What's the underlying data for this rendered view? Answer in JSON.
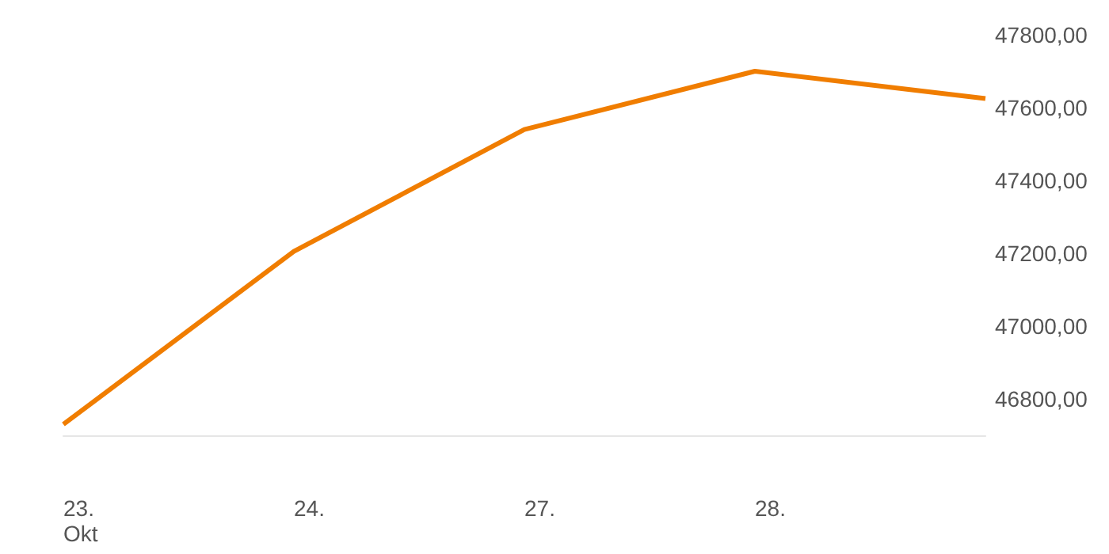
{
  "chart_data": {
    "type": "line",
    "categories": [
      "23.\nOkt",
      "24.",
      "27.",
      "28.",
      null
    ],
    "series": [
      {
        "color": "#f07d00",
        "values": [
          46730,
          47205,
          47540,
          47700,
          47625
        ]
      }
    ],
    "ylim": [
      46700,
      47800
    ],
    "yticks": [
      {
        "value": 46800,
        "label": "46800,00"
      },
      {
        "value": 47000,
        "label": "47000,00"
      },
      {
        "value": 47200,
        "label": "47200,00"
      },
      {
        "value": 47400,
        "label": "47400,00"
      },
      {
        "value": 47600,
        "label": "47600,00"
      },
      {
        "value": 47800,
        "label": "47800,00"
      }
    ],
    "grid": false,
    "marker": "none",
    "line_style": "solid"
  }
}
